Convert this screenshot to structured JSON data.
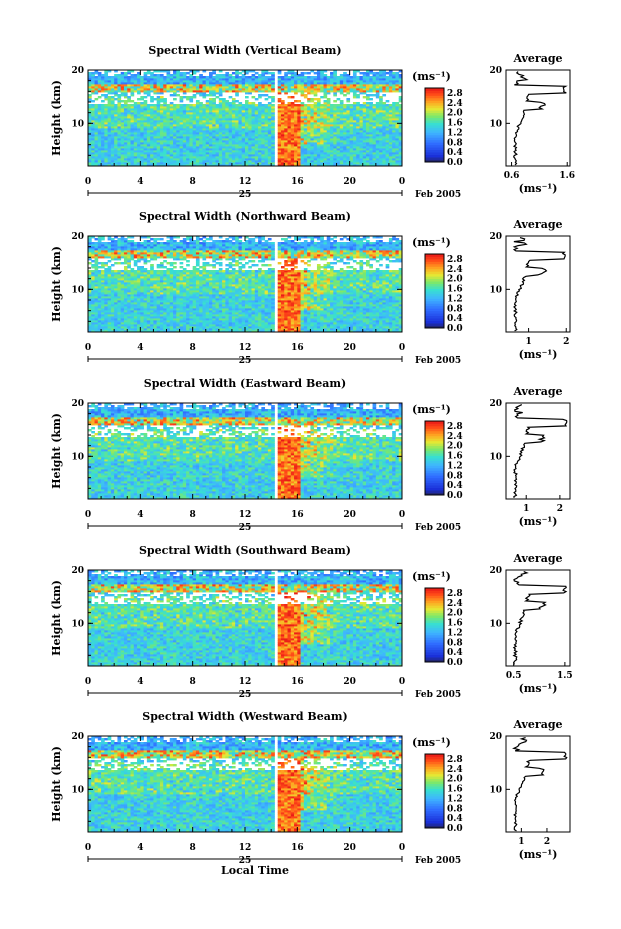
{
  "chart_data": [
    {
      "type": "heatmap",
      "title": "Spectral Width (Vertical Beam)",
      "ylabel": "Height (km)",
      "ylim": [
        2,
        20
      ],
      "yticks": [
        "20",
        "10"
      ],
      "xlim": [
        0,
        24
      ],
      "xticks": [
        "0",
        "4",
        "8",
        "12",
        "16",
        "20",
        "0"
      ],
      "date_day": "25",
      "date_month": "Feb 2005",
      "colorbar": {
        "unit": "(ms⁻¹)",
        "ticks": [
          "2.8",
          "2.4",
          "2.0",
          "1.6",
          "1.2",
          "0.8",
          "0.4",
          "0.0"
        ],
        "range": [
          0,
          3.0
        ]
      },
      "gap_hours": [
        14.3,
        14.6
      ],
      "average": {
        "title": "Average",
        "xlabel": "(ms⁻¹)",
        "xticks": [
          "0.6",
          "1.6"
        ],
        "xlim": [
          0.5,
          1.65
        ],
        "yticks": [
          "20",
          "10"
        ],
        "ylim": [
          2,
          20
        ]
      }
    },
    {
      "type": "heatmap",
      "title": "Spectral Width (Northward Beam)",
      "ylabel": "Height (km)",
      "ylim": [
        2,
        20
      ],
      "yticks": [
        "20",
        "10"
      ],
      "xlim": [
        0,
        24
      ],
      "xticks": [
        "0",
        "4",
        "8",
        "12",
        "16",
        "20",
        "0"
      ],
      "date_day": "25",
      "date_month": "Feb 2005",
      "colorbar": {
        "unit": "(ms⁻¹)",
        "ticks": [
          "2.8",
          "2.4",
          "2.0",
          "1.6",
          "1.2",
          "0.8",
          "0.4",
          "0.0"
        ],
        "range": [
          0,
          3.0
        ]
      },
      "gap_hours": [
        14.3,
        14.6
      ],
      "average": {
        "title": "Average",
        "xlabel": "(ms⁻¹)",
        "xticks": [
          "1",
          "2"
        ],
        "xlim": [
          0.4,
          2.1
        ],
        "yticks": [
          "20",
          "10"
        ],
        "ylim": [
          2,
          20
        ]
      }
    },
    {
      "type": "heatmap",
      "title": "Spectral Width (Eastward Beam)",
      "ylabel": "Height (km)",
      "ylim": [
        2,
        20
      ],
      "yticks": [
        "20",
        "10"
      ],
      "xlim": [
        0,
        24
      ],
      "xticks": [
        "0",
        "4",
        "8",
        "12",
        "16",
        "20",
        "0"
      ],
      "date_day": "25",
      "date_month": "Feb 2005",
      "colorbar": {
        "unit": "(ms⁻¹)",
        "ticks": [
          "2.8",
          "2.4",
          "2.0",
          "1.6",
          "1.2",
          "0.8",
          "0.4",
          "0.0"
        ],
        "range": [
          0,
          3.0
        ]
      },
      "gap_hours": [
        14.3,
        14.6
      ],
      "average": {
        "title": "Average",
        "xlabel": "(ms⁻¹)",
        "xticks": [
          "1",
          "2"
        ],
        "xlim": [
          0.4,
          2.3
        ],
        "yticks": [
          "20",
          "10"
        ],
        "ylim": [
          2,
          20
        ]
      }
    },
    {
      "type": "heatmap",
      "title": "Spectral Width (Southward Beam)",
      "ylabel": "Height (km)",
      "ylim": [
        2,
        20
      ],
      "yticks": [
        "20",
        "10"
      ],
      "xlim": [
        0,
        24
      ],
      "xticks": [
        "0",
        "4",
        "8",
        "12",
        "16",
        "20",
        "0"
      ],
      "date_day": "25",
      "date_month": "Feb 2005",
      "colorbar": {
        "unit": "(ms⁻¹)",
        "ticks": [
          "2.8",
          "2.4",
          "2.0",
          "1.6",
          "1.2",
          "0.8",
          "0.4",
          "0.0"
        ],
        "range": [
          0,
          3.0
        ]
      },
      "gap_hours": [
        14.3,
        14.6
      ],
      "average": {
        "title": "Average",
        "xlabel": "(ms⁻¹)",
        "xticks": [
          "0.5",
          "1.5"
        ],
        "xlim": [
          0.35,
          1.6
        ],
        "yticks": [
          "20",
          "10"
        ],
        "ylim": [
          2,
          20
        ]
      }
    },
    {
      "type": "heatmap",
      "title": "Spectral Width (Westward Beam)",
      "ylabel": "Height (km)",
      "xlabel": "Local Time",
      "ylim": [
        2,
        20
      ],
      "yticks": [
        "20",
        "10"
      ],
      "xlim": [
        0,
        24
      ],
      "xticks": [
        "0",
        "4",
        "8",
        "12",
        "16",
        "20",
        "0"
      ],
      "date_day": "25",
      "date_month": "Feb 2005",
      "colorbar": {
        "unit": "(ms⁻¹)",
        "ticks": [
          "2.8",
          "2.4",
          "2.0",
          "1.6",
          "1.2",
          "0.8",
          "0.4",
          "0.0"
        ],
        "range": [
          0,
          3.0
        ]
      },
      "gap_hours": [
        14.3,
        14.6
      ],
      "average": {
        "title": "Average",
        "xlabel": "(ms⁻¹)",
        "xticks": [
          "1",
          "2"
        ],
        "xlim": [
          0.4,
          2.9
        ],
        "yticks": [
          "20",
          "10"
        ],
        "ylim": [
          2,
          20
        ]
      }
    }
  ]
}
